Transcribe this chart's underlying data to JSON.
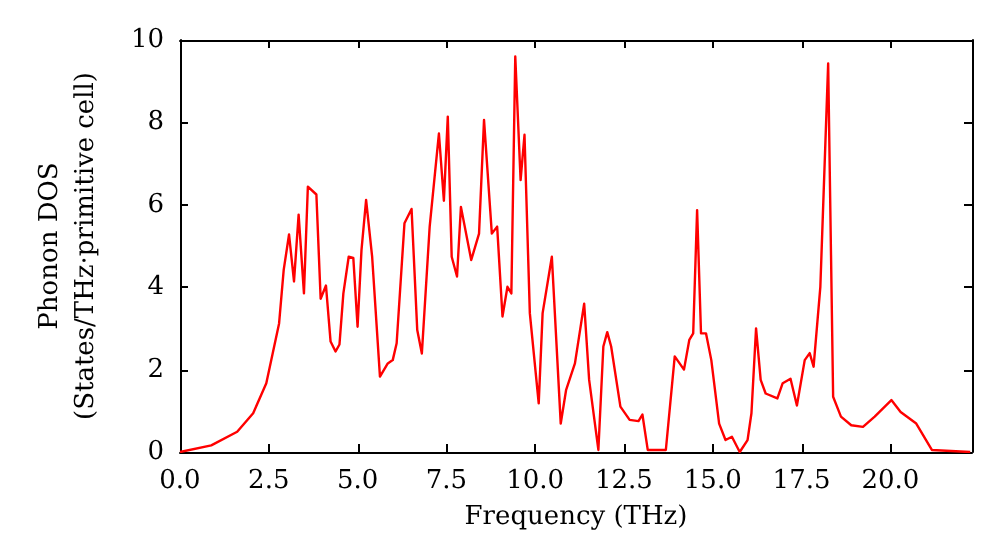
{
  "chart_data": {
    "type": "line",
    "xlabel": "Frequency (THz)",
    "ylabel": "Phonon DOS\n(States/THz·primitive cell)",
    "series": [
      {
        "color": "#ff0000",
        "x": [
          0,
          0.88,
          1.61,
          2.06,
          2.43,
          2.79,
          2.92,
          3.07,
          3.21,
          3.34,
          3.49,
          3.6,
          3.84,
          3.96,
          4.11,
          4.24,
          4.38,
          4.49,
          4.6,
          4.75,
          4.88,
          5.0,
          5.11,
          5.24,
          5.41,
          5.63,
          5.85,
          5.99,
          6.1,
          6.32,
          6.52,
          6.68,
          6.81,
          7.03,
          7.29,
          7.43,
          7.54,
          7.65,
          7.8,
          7.91,
          8.2,
          8.42,
          8.56,
          8.78,
          8.93,
          9.08,
          9.22,
          9.33,
          9.44,
          9.59,
          9.7,
          9.85,
          10.1,
          10.21,
          10.47,
          10.72,
          10.87,
          11.12,
          11.38,
          11.52,
          11.78,
          11.92,
          12.03,
          12.14,
          12.4,
          12.66,
          12.91,
          13.02,
          13.17,
          13.68,
          13.93,
          14.19,
          14.34,
          14.45,
          14.56,
          14.67,
          14.81,
          14.96,
          15.18,
          15.36,
          15.54,
          15.76,
          15.98,
          16.09,
          16.22,
          16.35,
          16.49,
          16.82,
          16.97,
          17.19,
          17.37,
          17.59,
          17.73,
          17.84,
          18.03,
          18.25,
          18.39,
          18.61,
          18.9,
          19.23,
          19.56,
          20.03,
          20.29,
          20.73,
          21.17,
          22.25
        ],
        "values": [
          0,
          0.16,
          0.49,
          0.94,
          1.67,
          3.12,
          4.42,
          5.28,
          4.14,
          5.76,
          3.85,
          6.44,
          6.25,
          3.72,
          4.04,
          2.68,
          2.44,
          2.61,
          3.85,
          4.74,
          4.71,
          3.04,
          4.9,
          6.12,
          4.74,
          1.83,
          2.15,
          2.23,
          2.64,
          5.55,
          5.9,
          2.96,
          2.39,
          5.47,
          7.73,
          6.1,
          8.14,
          4.74,
          4.26,
          5.95,
          4.66,
          5.3,
          8.06,
          5.3,
          5.47,
          3.29,
          4.01,
          3.85,
          9.6,
          6.6,
          7.7,
          3.37,
          1.18,
          3.37,
          4.74,
          0.69,
          1.5,
          2.15,
          3.6,
          1.75,
          0.05,
          2.56,
          2.91,
          2.56,
          1.1,
          0.78,
          0.75,
          0.91,
          0.05,
          0.05,
          2.32,
          2.0,
          2.72,
          2.88,
          5.87,
          2.88,
          2.88,
          2.23,
          0.69,
          0.29,
          0.37,
          0,
          0.29,
          0.94,
          3.0,
          1.75,
          1.42,
          1.3,
          1.67,
          1.78,
          1.13,
          2.23,
          2.4,
          2.07,
          4.01,
          9.43,
          1.34,
          0.86,
          0.65,
          0.61,
          0.86,
          1.26,
          0.97,
          0.69,
          0.05,
          0
        ]
      }
    ],
    "xlim": [
      0,
      22.3
    ],
    "xticks": [
      {
        "value": 0,
        "label": "0.0"
      },
      {
        "value": 2.5,
        "label": "2.5"
      },
      {
        "value": 5,
        "label": "5.0"
      },
      {
        "value": 7.5,
        "label": "7.5"
      },
      {
        "value": 10,
        "label": "10.0"
      },
      {
        "value": 12.5,
        "label": "12.5"
      },
      {
        "value": 15,
        "label": "15.0"
      },
      {
        "value": 17.5,
        "label": "17.5"
      },
      {
        "value": 20,
        "label": "20.0"
      }
    ],
    "ylim": [
      0,
      10
    ],
    "yticks": [
      0,
      2,
      4,
      6,
      8,
      10
    ],
    "grid": false,
    "marker": "none",
    "line_style": "solid"
  }
}
